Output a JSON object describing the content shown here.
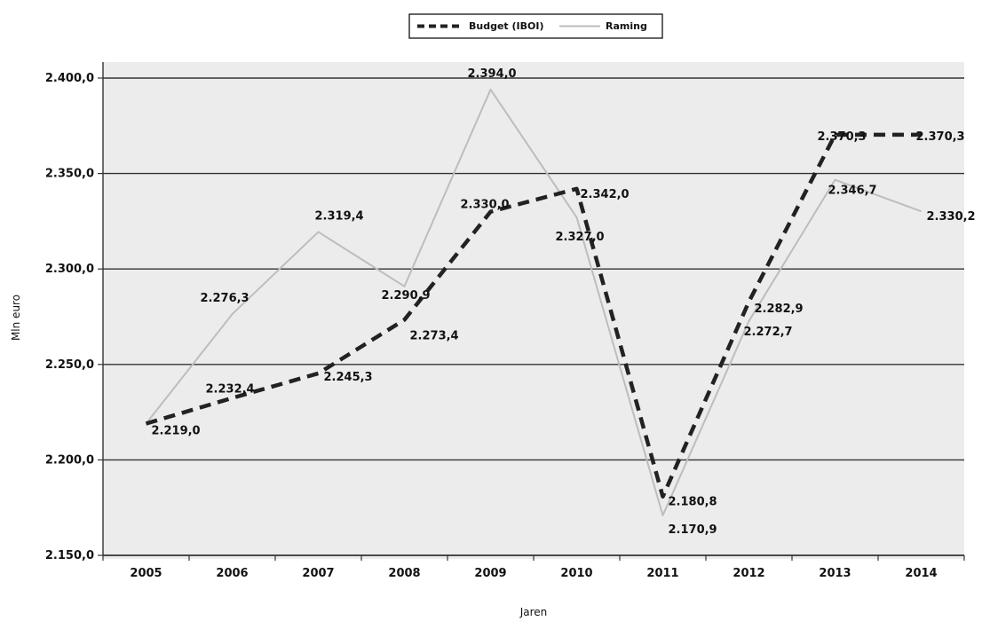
{
  "chart_data": {
    "type": "line",
    "xlabel": "Jaren",
    "ylabel": "Mln euro",
    "categories": [
      "2005",
      "2006",
      "2007",
      "2008",
      "2009",
      "2010",
      "2011",
      "2012",
      "2013",
      "2014"
    ],
    "ylim": [
      2150,
      2400
    ],
    "yticks": [
      2150,
      2200,
      2250,
      2300,
      2350,
      2400
    ],
    "ytick_labels": [
      "2.150,0",
      "2.200,0",
      "2.250,0",
      "2.300,0",
      "2.350,0",
      "2.400,0"
    ],
    "grid": true,
    "legend_position": "top-center",
    "series": [
      {
        "name": "Budget (IBOI)",
        "style": "dashed",
        "color": "#222222",
        "values": [
          2219.0,
          2232.4,
          2245.3,
          2273.4,
          2330.0,
          2342.0,
          2180.8,
          2282.9,
          2370.3,
          2370.3
        ],
        "labels": [
          "2.219,0",
          "2.232,4",
          "2.245,3",
          "2.273,4",
          "2.330,0",
          "2.342,0",
          "2.180,8",
          "2.282,9",
          "2.370,3",
          "2.370,3"
        ]
      },
      {
        "name": "Raming",
        "style": "solid",
        "color": "#bdbdbd",
        "values": [
          2219.0,
          2276.3,
          2319.4,
          2290.9,
          2394.0,
          2327.0,
          2170.9,
          2272.7,
          2346.7,
          2330.2
        ],
        "labels": [
          "",
          "2.276,3",
          "2.319,4",
          "2.290,9",
          "2.394,0",
          "2.327,0",
          "2.170,9",
          "2.272,7",
          "2.346,7",
          "2.330,2"
        ]
      }
    ]
  }
}
